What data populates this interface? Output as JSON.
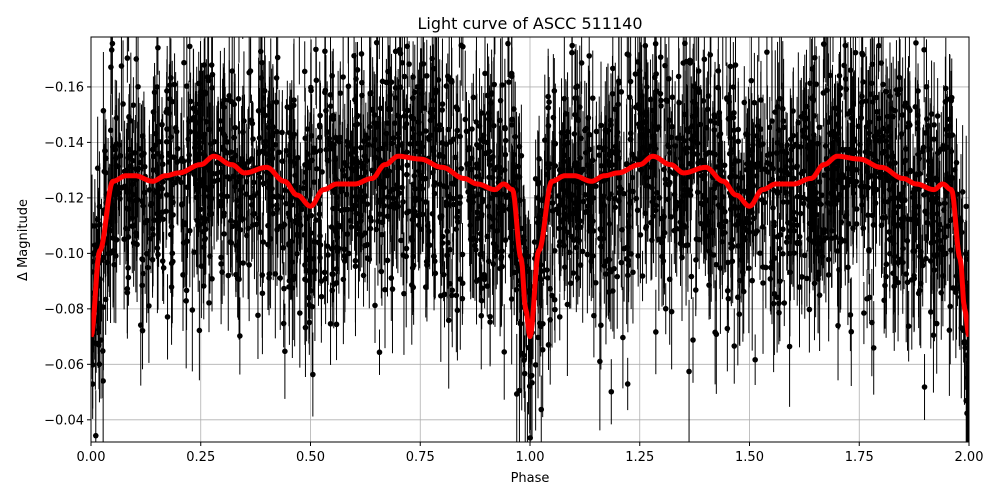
{
  "chart_data": {
    "type": "scatter",
    "title": "Light curve of ASCC 511140",
    "xlabel": "Phase",
    "ylabel": "Δ Magnitude",
    "xlim": [
      0.0,
      2.0
    ],
    "ylim": [
      -0.032,
      -0.178
    ],
    "y_inverted": true,
    "grid": true,
    "xticks": [
      "0.00",
      "0.25",
      "0.50",
      "0.75",
      "1.00",
      "1.25",
      "1.50",
      "1.75",
      "2.00"
    ],
    "xtick_values": [
      0,
      0.25,
      0.5,
      0.75,
      1.0,
      1.25,
      1.5,
      1.75,
      2.0
    ],
    "yticks": [
      "−0.16",
      "−0.14",
      "−0.12",
      "−0.10",
      "−0.08",
      "−0.06",
      "−0.04"
    ],
    "ytick_values": [
      -0.16,
      -0.14,
      -0.12,
      -0.1,
      -0.08,
      -0.06,
      -0.04
    ],
    "observations": {
      "marker_color": "#000000",
      "error_bars": true
    },
    "model_curve": {
      "color": "#ff0000",
      "phase": [
        0.0,
        0.02,
        0.05,
        0.08,
        0.1,
        0.14,
        0.17,
        0.2,
        0.25,
        0.28,
        0.32,
        0.35,
        0.4,
        0.44,
        0.47,
        0.5,
        0.53,
        0.56,
        0.6,
        0.64,
        0.67,
        0.7,
        0.75,
        0.8,
        0.85,
        0.88,
        0.92,
        0.94,
        0.96,
        0.98,
        0.99,
        1.0
      ],
      "magnitude": [
        -0.07,
        -0.101,
        -0.126,
        -0.128,
        -0.128,
        -0.126,
        -0.128,
        -0.129,
        -0.132,
        -0.135,
        -0.132,
        -0.129,
        -0.131,
        -0.126,
        -0.121,
        -0.117,
        -0.123,
        -0.125,
        -0.125,
        -0.127,
        -0.132,
        -0.135,
        -0.134,
        -0.131,
        -0.127,
        -0.125,
        -0.123,
        -0.125,
        -0.123,
        -0.098,
        -0.08,
        -0.07
      ]
    }
  }
}
